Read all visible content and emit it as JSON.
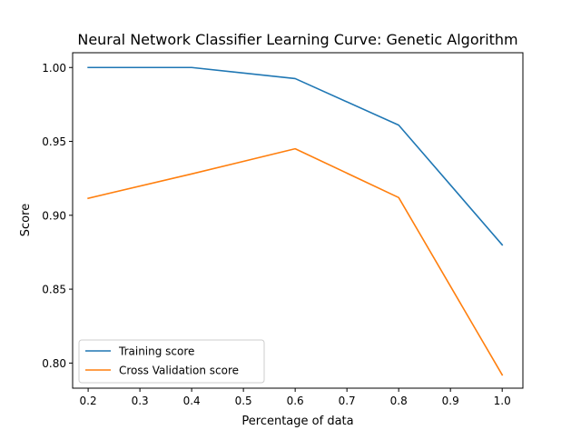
{
  "chart_data": {
    "type": "line",
    "title": "Neural Network Classifier Learning Curve: Genetic Algorithm",
    "xlabel": "Percentage of data",
    "ylabel": "Score",
    "x": [
      0.2,
      0.4,
      0.6,
      0.8,
      1.0
    ],
    "xlim": [
      0.17,
      1.04
    ],
    "ylim": [
      0.783,
      1.01
    ],
    "xticks": [
      "0.2",
      "0.3",
      "0.4",
      "0.5",
      "0.6",
      "0.7",
      "0.8",
      "0.9",
      "1.0"
    ],
    "yticks": [
      "0.80",
      "0.85",
      "0.90",
      "0.95",
      "1.00"
    ],
    "grid": false,
    "legend_position": "lower-left",
    "series": [
      {
        "name": "Training score",
        "color": "#1f77b4",
        "values": [
          1.0,
          1.0,
          0.9925,
          0.961,
          0.88
        ]
      },
      {
        "name": "Cross Validation score",
        "color": "#ff7f0e",
        "values": [
          0.9115,
          0.928,
          0.945,
          0.912,
          0.792
        ]
      }
    ]
  }
}
